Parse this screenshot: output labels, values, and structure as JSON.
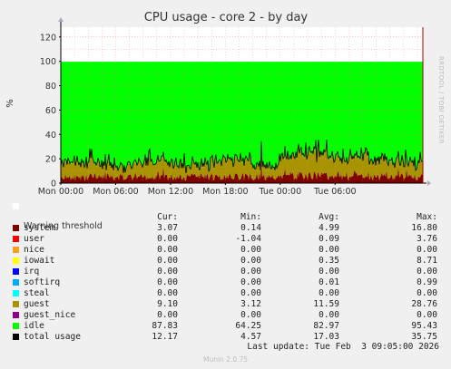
{
  "chart_data": {
    "type": "area",
    "title": "CPU usage - core 2 - by day",
    "ylabel": "%",
    "side_label": "RRDTOOL / TOBI OETIKER",
    "ylim": [
      0,
      128
    ],
    "yticks": [
      0,
      20,
      40,
      60,
      80,
      100,
      120
    ],
    "xticks": [
      "Mon 00:00",
      "Mon 06:00",
      "Mon 12:00",
      "Mon 18:00",
      "Tue 00:00",
      "Tue 06:00"
    ],
    "warning_threshold": 100,
    "stacked_series": [
      {
        "name": "system",
        "color": "#7f0000",
        "typical": 4.99
      },
      {
        "name": "guest",
        "color": "#a89400",
        "typical": 11.59
      },
      {
        "name": "idle",
        "color": "#00ff00",
        "typical": 82.97
      }
    ],
    "total_usage_line": {
      "name": "total usage",
      "color": "#000000",
      "min": 4.57,
      "avg": 17.03,
      "max": 35.75
    }
  },
  "legend": {
    "warning_label": "Warning threshold",
    "headers": {
      "cur": "Cur:",
      "min": "Min:",
      "avg": "Avg:",
      "max": "Max:"
    },
    "rows": [
      {
        "name": "system",
        "color": "#7f0000",
        "cur": "3.07",
        "min": "0.14",
        "avg": "4.99",
        "max": "16.80"
      },
      {
        "name": "user",
        "color": "#ff0000",
        "cur": "0.00",
        "min": "-1.04",
        "avg": "0.09",
        "max": "3.76"
      },
      {
        "name": "nice",
        "color": "#f7a01e",
        "cur": "0.00",
        "min": "0.00",
        "avg": "0.00",
        "max": "0.00"
      },
      {
        "name": "iowait",
        "color": "#ffff00",
        "cur": "0.00",
        "min": "0.00",
        "avg": "0.35",
        "max": "8.71"
      },
      {
        "name": "irq",
        "color": "#0000ff",
        "cur": "0.00",
        "min": "0.00",
        "avg": "0.00",
        "max": "0.00"
      },
      {
        "name": "softirq",
        "color": "#00aaff",
        "cur": "0.00",
        "min": "0.00",
        "avg": "0.01",
        "max": "0.99"
      },
      {
        "name": "steal",
        "color": "#00ffff",
        "cur": "0.00",
        "min": "0.00",
        "avg": "0.00",
        "max": "0.00"
      },
      {
        "name": "guest",
        "color": "#a89400",
        "cur": "9.10",
        "min": "3.12",
        "avg": "11.59",
        "max": "28.76"
      },
      {
        "name": "guest_nice",
        "color": "#8a008a",
        "cur": "0.00",
        "min": "0.00",
        "avg": "0.00",
        "max": "0.00"
      },
      {
        "name": "idle",
        "color": "#00ff00",
        "cur": "87.83",
        "min": "64.25",
        "avg": "82.97",
        "max": "95.43"
      },
      {
        "name": "total usage",
        "color": "#000000",
        "cur": "12.17",
        "min": "4.57",
        "avg": "17.03",
        "max": "35.75"
      }
    ]
  },
  "footer": {
    "last_update": "Last update: Tue Feb  3 09:05:00 2026",
    "munin_version": "Munin 2.0.75"
  }
}
